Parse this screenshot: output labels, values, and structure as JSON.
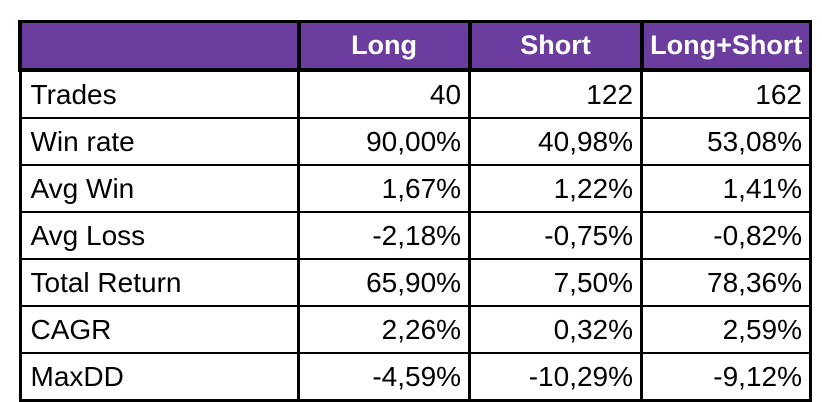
{
  "table": {
    "corner_label": "",
    "columns": [
      "Long",
      "Short",
      "Long+Short"
    ],
    "rows": [
      {
        "label": "Trades",
        "values": [
          "40",
          "122",
          "162"
        ]
      },
      {
        "label": "Win rate",
        "values": [
          "90,00%",
          "40,98%",
          "53,08%"
        ]
      },
      {
        "label": "Avg Win",
        "values": [
          "1,67%",
          "1,22%",
          "1,41%"
        ]
      },
      {
        "label": "Avg Loss",
        "values": [
          "-2,18%",
          "-0,75%",
          "-0,82%"
        ]
      },
      {
        "label": "Total Return",
        "values": [
          "65,90%",
          "7,50%",
          "78,36%"
        ]
      },
      {
        "label": "CAGR",
        "values": [
          "2,26%",
          "0,32%",
          "2,59%"
        ]
      },
      {
        "label": "MaxDD",
        "values": [
          "-4,59%",
          "-10,29%",
          "-9,12%"
        ]
      }
    ],
    "colors": {
      "header_bg": "#6a3d9e",
      "header_text": "#ffffff",
      "border": "#000000",
      "cell_bg": "#ffffff",
      "cell_text": "#000000"
    }
  },
  "chart_data": {
    "type": "table",
    "title": "",
    "columns": [
      "",
      "Long",
      "Short",
      "Long+Short"
    ],
    "rows": [
      [
        "Trades",
        "40",
        "122",
        "162"
      ],
      [
        "Win rate",
        "90,00%",
        "40,98%",
        "53,08%"
      ],
      [
        "Avg Win",
        "1,67%",
        "1,22%",
        "1,41%"
      ],
      [
        "Avg Loss",
        "-2,18%",
        "-0,75%",
        "-0,82%"
      ],
      [
        "Total Return",
        "65,90%",
        "7,50%",
        "78,36%"
      ],
      [
        "CAGR",
        "2,26%",
        "0,32%",
        "2,59%"
      ],
      [
        "MaxDD",
        "-4,59%",
        "-10,29%",
        "-9,12%"
      ]
    ],
    "notes": "Decimal commas as displayed; first column holds metric labels, header row has an empty corner cell."
  }
}
